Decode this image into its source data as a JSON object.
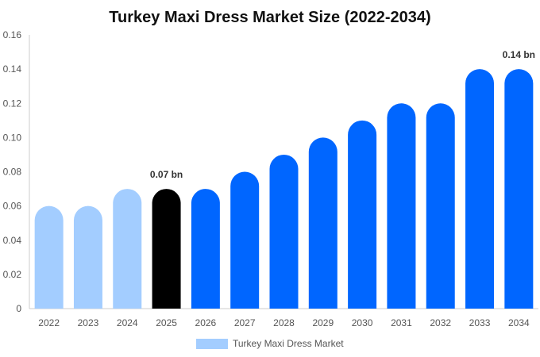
{
  "chart_data": {
    "type": "bar",
    "title": "Turkey Maxi Dress Market Size (2022-2034)",
    "categories": [
      "2022",
      "2023",
      "2024",
      "2025",
      "2026",
      "2027",
      "2028",
      "2029",
      "2030",
      "2031",
      "2032",
      "2033",
      "2034"
    ],
    "series": [
      {
        "name": "Turkey Maxi Dress Market",
        "values": [
          0.06,
          0.06,
          0.07,
          0.07,
          0.07,
          0.08,
          0.09,
          0.1,
          0.11,
          0.12,
          0.12,
          0.14,
          0.14
        ]
      }
    ],
    "bar_colors": [
      "#a3cdff",
      "#a3cdff",
      "#a3cdff",
      "#000000",
      "#0066ff",
      "#0066ff",
      "#0066ff",
      "#0066ff",
      "#0066ff",
      "#0066ff",
      "#0066ff",
      "#0066ff",
      "#0066ff"
    ],
    "data_labels": [
      {
        "category": "2025",
        "text": "0.07 bn"
      },
      {
        "category": "2034",
        "text": "0.14 bn"
      }
    ],
    "ylim": [
      0,
      0.16
    ],
    "yticks": [
      "0",
      "0.02",
      "0.04",
      "0.06",
      "0.08",
      "0.10",
      "0.12",
      "0.14",
      "0.16"
    ],
    "xlabel": "",
    "ylabel": "",
    "grid": false,
    "legend_position": "bottom",
    "legend_color": "#a3cdff"
  }
}
